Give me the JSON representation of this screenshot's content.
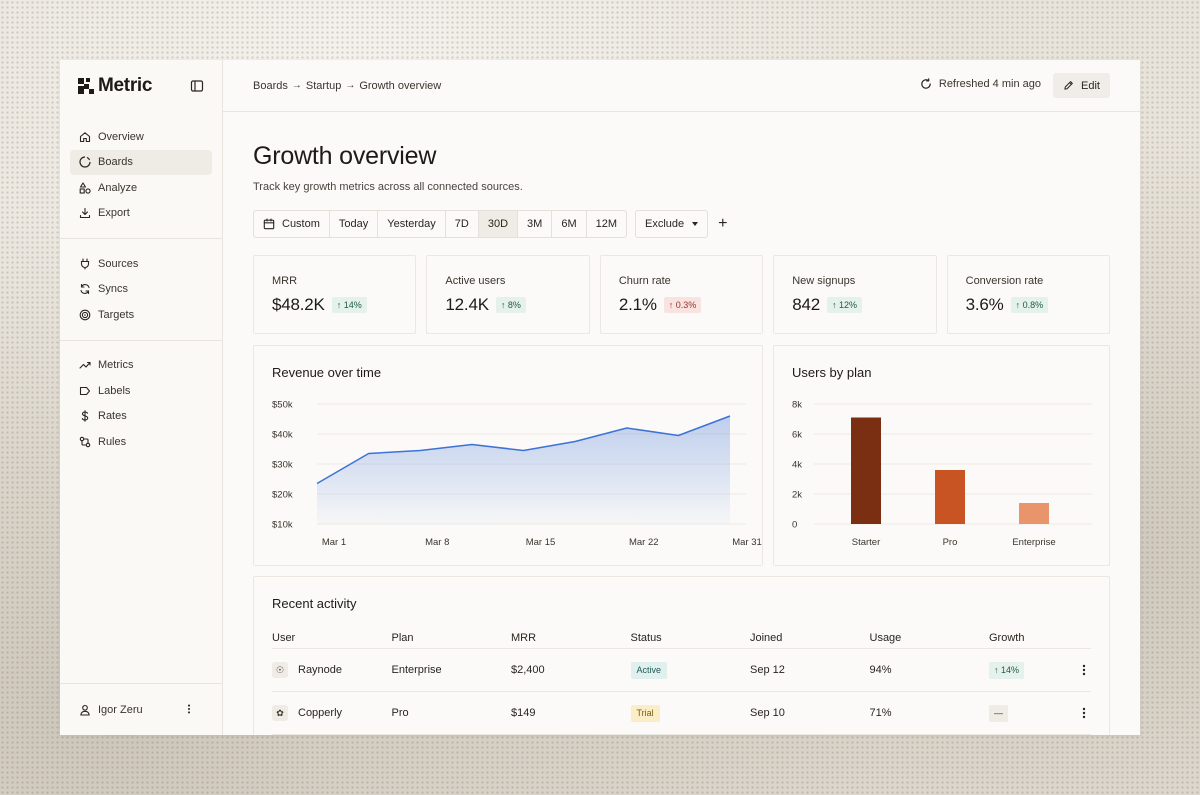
{
  "app": {
    "name": "Metric"
  },
  "sidebar": {
    "groups": [
      [
        {
          "label": "Overview",
          "icon": "home-icon"
        },
        {
          "label": "Boards",
          "icon": "boards-icon",
          "active": true
        },
        {
          "label": "Analyze",
          "icon": "shapes-icon"
        },
        {
          "label": "Export",
          "icon": "download-icon"
        }
      ],
      [
        {
          "label": "Sources",
          "icon": "plug-icon"
        },
        {
          "label": "Syncs",
          "icon": "sync-icon"
        },
        {
          "label": "Targets",
          "icon": "target-icon"
        }
      ],
      [
        {
          "label": "Metrics",
          "icon": "trend-icon"
        },
        {
          "label": "Labels",
          "icon": "label-icon"
        },
        {
          "label": "Rates",
          "icon": "dollar-icon"
        },
        {
          "label": "Rules",
          "icon": "rules-icon"
        }
      ]
    ],
    "user": {
      "name": "Igor Zeru"
    }
  },
  "header": {
    "breadcrumbs": [
      "Boards",
      "Startup",
      "Growth overview"
    ],
    "refreshed": "Refreshed 4 min ago",
    "edit_label": "Edit"
  },
  "page": {
    "title": "Growth overview",
    "subtitle": "Track key growth metrics across all connected sources."
  },
  "filters": {
    "ranges": [
      "Custom",
      "Today",
      "Yesterday",
      "7D",
      "30D",
      "3M",
      "6M",
      "12M"
    ],
    "active_range": "30D",
    "exclude_label": "Exclude",
    "add_label": "+"
  },
  "kpis": [
    {
      "label": "MRR",
      "value": "$48.2K",
      "change": "↑ 14%",
      "direction": "up"
    },
    {
      "label": "Active users",
      "value": "12.4K",
      "change": "↑ 8%",
      "direction": "up"
    },
    {
      "label": "Churn rate",
      "value": "2.1%",
      "change": "↑ 0.3%",
      "direction": "down"
    },
    {
      "label": "New signups",
      "value": "842",
      "change": "↑ 12%",
      "direction": "up"
    },
    {
      "label": "Conversion rate",
      "value": "3.6%",
      "change": "↑ 0.8%",
      "direction": "up"
    }
  ],
  "chart_data": [
    {
      "type": "area",
      "title": "Revenue over time",
      "x": [
        "Mar 1",
        "Mar 4",
        "Mar 8",
        "Mar 11",
        "Mar 15",
        "Mar 18",
        "Mar 22",
        "Mar 27",
        "Mar 31"
      ],
      "x_tick_labels": [
        "Mar 1",
        "Mar 8",
        "Mar 15",
        "Mar 22",
        "Mar 31"
      ],
      "series": [
        {
          "values": [
            23500,
            33500,
            34500,
            36500,
            34500,
            37500,
            42000,
            39500,
            46000
          ]
        }
      ],
      "ylim": [
        10000,
        50000
      ],
      "y_tick_labels": [
        "$50k",
        "$40k",
        "$30k",
        "$20k",
        "$10k"
      ],
      "y_ticks": [
        50000,
        40000,
        30000,
        20000,
        10000
      ],
      "grid": true,
      "color": "#3d72d6"
    },
    {
      "type": "bar",
      "title": "Users by plan",
      "categories": [
        "Starter",
        "Pro",
        "Enterprise"
      ],
      "values": [
        7100,
        3600,
        1400
      ],
      "colors": [
        "#7a2e12",
        "#c85424",
        "#e8956c"
      ],
      "ylim": [
        0,
        8000
      ],
      "y_tick_labels": [
        "8k",
        "6k",
        "4k",
        "2k",
        "0"
      ],
      "y_ticks": [
        8000,
        6000,
        4000,
        2000,
        0
      ],
      "grid": true
    }
  ],
  "activity": {
    "title": "Recent activity",
    "columns": [
      "User",
      "Plan",
      "MRR",
      "Status",
      "Joined",
      "Usage",
      "Growth"
    ],
    "rows": [
      {
        "user": "Raynode",
        "avatar": "☉",
        "plan": "Enterprise",
        "mrr": "$2,400",
        "status": "Active",
        "status_kind": "active",
        "joined": "Sep 12",
        "usage": "94%",
        "growth": "↑ 14%",
        "growth_kind": "up"
      },
      {
        "user": "Copperly",
        "avatar": "✿",
        "plan": "Pro",
        "mrr": "$149",
        "status": "Trial",
        "status_kind": "trial",
        "joined": "Sep 10",
        "usage": "71%",
        "growth": "—",
        "growth_kind": "flat"
      }
    ]
  }
}
